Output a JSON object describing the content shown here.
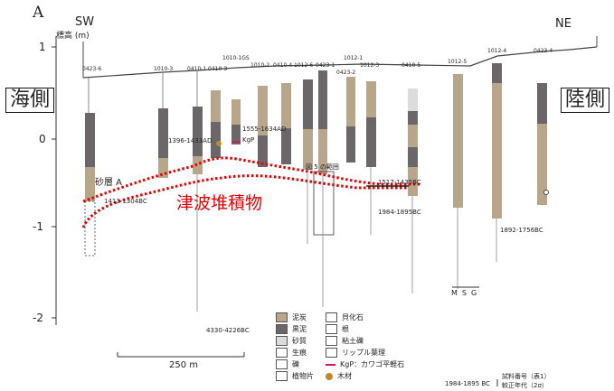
{
  "panel_letter": "A",
  "dir_left": "SW",
  "dir_right": "NE",
  "ylabel": "標高 (m)",
  "yticks": [
    "1",
    "0",
    "-1",
    "-2"
  ],
  "side_left": "海側",
  "side_right": "陸側",
  "tsunami_label": "津波堆積物",
  "sand_label": "砂層 A",
  "range_label": "図 5 の範囲",
  "cores": [
    "0423-6",
    "1010-3",
    "0410-1",
    "0410-3",
    "1010-1GS",
    "1010-2",
    "0410-4",
    "1012-6",
    "0423-1",
    "1012-1",
    "1012-3",
    "0423-2",
    "0410-5",
    "1012-5",
    "1012-4",
    "0423-4"
  ],
  "ages": [
    "1413-1304BC",
    "1396-1433AD",
    "1555-1634AD",
    "KgP",
    "1517-1435BC",
    "1984-1895BC",
    "1892-1756BC",
    "4330-4226BC"
  ],
  "grain_labels": [
    "M",
    "S",
    "G"
  ],
  "scale_label": "250 m",
  "legend": {
    "col1": [
      "泥炭",
      "黒泥",
      "砂質",
      "生痕",
      "礫",
      "植物片"
    ],
    "col2": [
      "貝化石",
      "根",
      "粘土礫",
      "リップル葉理",
      "KgP：カワゴ平軽石",
      "木材"
    ],
    "note_sample": "試料番号（表1）",
    "note_age": "較正年代（2σ）",
    "note_example": "1984-1895 BC"
  },
  "colors": {
    "peat": "#b7a68a",
    "black_mud": "#6b6668",
    "tsunami": "#e60000"
  }
}
